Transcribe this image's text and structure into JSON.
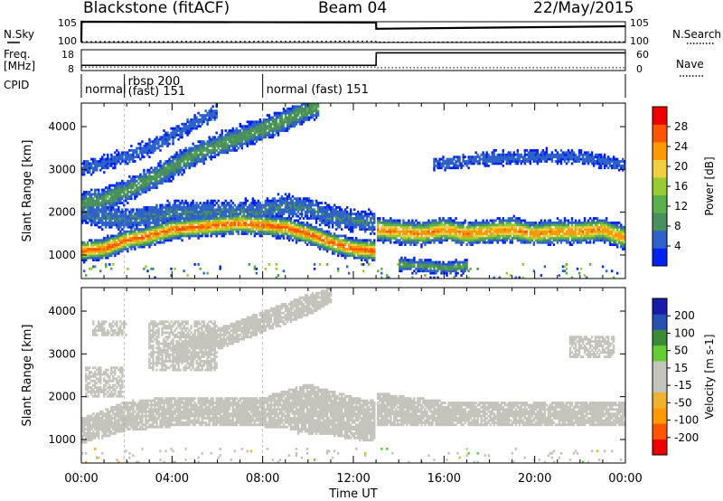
{
  "header": {
    "station": "Blackstone (fitACF)",
    "beam": "Beam 04",
    "date": "22/May/2015"
  },
  "colors": {
    "power_scale": [
      "#0022ee",
      "#2f62c8",
      "#4a8f5e",
      "#5ab04a",
      "#99cc33",
      "#f0d040",
      "#ff9900",
      "#ff5500",
      "#ee0000"
    ],
    "velocity_scale": [
      "#ee0000",
      "#ff5500",
      "#ff9900",
      "#f0b030",
      "#c4c4bc",
      "#c4c4bc",
      "#66cc33",
      "#3a8a3a",
      "#2850b0",
      "#1a1aaa"
    ],
    "ground_scatter": "#c4c4bc"
  },
  "chart_data": [
    {
      "type": "line",
      "panel": "noise",
      "left_label": "N.Sky",
      "right_label": "N.Search",
      "left_ticks": [
        "10^5",
        "10^0"
      ],
      "right_ticks": [
        "10^5",
        "10^0"
      ],
      "series": [
        {
          "name": "N.Sky",
          "x": [
            0,
            0.01,
            13,
            13.01,
            24
          ],
          "y": [
            0.2,
            5.0,
            4.8,
            3.3,
            3.9
          ]
        },
        {
          "name": "N.Search",
          "x": [
            0,
            13,
            13.01,
            24
          ],
          "y": [
            0.2,
            0.3,
            0.1,
            0.2
          ]
        }
      ]
    },
    {
      "type": "line",
      "panel": "frequency",
      "left_label": "Freq. [MHz]",
      "right_label": "Nave",
      "left_ticks": [
        18,
        8
      ],
      "right_ticks": [
        60,
        0
      ],
      "series": [
        {
          "name": "Freq. [MHz]",
          "x": [
            0,
            13,
            13.01,
            24
          ],
          "y": [
            10.5,
            10.5,
            16.5,
            16.5
          ]
        },
        {
          "name": "Nave",
          "x": [
            0,
            13,
            13.01,
            24
          ],
          "y": [
            10,
            10,
            8,
            8
          ]
        }
      ]
    },
    {
      "type": "table",
      "panel": "cpid",
      "label": "CPID",
      "segments": [
        {
          "start": 0,
          "end": 1.9,
          "text": "normal",
          "text2": ""
        },
        {
          "start": 1.9,
          "end": 8.0,
          "text": "rbsp 200",
          "text2": "(fast) 151"
        },
        {
          "start": 8.0,
          "end": 24,
          "text": "normal (fast) 151",
          "text2": ""
        }
      ]
    },
    {
      "type": "heatmap",
      "panel": "power",
      "xlabel": "",
      "ylabel": "Slant Range [km]",
      "xlim": [
        0,
        24
      ],
      "ylim": [
        450,
        4550
      ],
      "yticks": [
        1000,
        2000,
        3000,
        4000
      ],
      "colorbar_label": "Power [dB]",
      "colorbar_ticks": [
        28,
        24,
        20,
        16,
        12,
        8,
        4
      ],
      "colorbar_range": [
        0,
        32
      ],
      "bands": [
        {
          "x": [
            0,
            1,
            2,
            3,
            4,
            5,
            6,
            7,
            8,
            9,
            10,
            11,
            12,
            12.95
          ],
          "center": [
            1100,
            1150,
            1350,
            1450,
            1600,
            1650,
            1700,
            1750,
            1700,
            1650,
            1500,
            1300,
            1150,
            1100
          ],
          "width": 160,
          "peak": 26
        },
        {
          "x": [
            13.05,
            14,
            15,
            16,
            17,
            18,
            19,
            20,
            21,
            22,
            23,
            24
          ],
          "center": [
            1600,
            1550,
            1500,
            1600,
            1500,
            1550,
            1600,
            1500,
            1550,
            1550,
            1600,
            1400
          ],
          "width": 180,
          "peak": 24
        },
        {
          "x": [
            0,
            1,
            2,
            3,
            4,
            5,
            6,
            7,
            8,
            9,
            10,
            11,
            12,
            12.95
          ],
          "center": [
            2000,
            1900,
            1850,
            1900,
            2000,
            2000,
            2000,
            2000,
            2050,
            2150,
            2100,
            1900,
            1800,
            1750
          ],
          "width": 230,
          "peak": 7
        },
        {
          "x": [
            0,
            1,
            2,
            3,
            4,
            5,
            6,
            7,
            8,
            9,
            10,
            10.5
          ],
          "center": [
            2200,
            2300,
            2500,
            2750,
            3050,
            3350,
            3550,
            3750,
            3950,
            4150,
            4400,
            4500
          ],
          "width": 220,
          "peak": 10
        },
        {
          "x": [
            0,
            1,
            2,
            3,
            4,
            5,
            6
          ],
          "center": [
            3000,
            3150,
            3300,
            3500,
            3800,
            4100,
            4350
          ],
          "width": 180,
          "peak": 5
        },
        {
          "x": [
            15.5,
            18,
            20,
            22,
            24
          ],
          "center": [
            3150,
            3250,
            3300,
            3300,
            3100
          ],
          "width": 160,
          "peak": 5
        },
        {
          "x": [
            14,
            16,
            17
          ],
          "center": [
            800,
            700,
            750
          ],
          "width": 120,
          "peak": 10
        }
      ]
    },
    {
      "type": "heatmap",
      "panel": "velocity",
      "xlabel": "Time UT",
      "ylabel": "Slant Range [km]",
      "xlim": [
        0,
        24
      ],
      "ylim": [
        450,
        4550
      ],
      "yticks": [
        1000,
        2000,
        3000,
        4000
      ],
      "xticks": [
        "00:00",
        "04:00",
        "08:00",
        "12:00",
        "16:00",
        "20:00",
        "00:00"
      ],
      "colorbar_label": "Velocity [m s^-1]",
      "colorbar_ticks": [
        200,
        100,
        50,
        15,
        -15,
        -50,
        -100,
        -200
      ],
      "colorbar_range": [
        -250,
        250
      ],
      "ground_scatter_regions": [
        {
          "x": [
            0,
            2,
            4,
            6,
            8,
            10,
            12,
            12.95
          ],
          "low": [
            900,
            1200,
            1300,
            1300,
            1300,
            1200,
            1000,
            950
          ],
          "high": [
            1500,
            1900,
            2000,
            2000,
            2000,
            2300,
            2000,
            1900
          ]
        },
        {
          "x": [
            13.05,
            16,
            20,
            24
          ],
          "low": [
            1300,
            1300,
            1300,
            1300
          ],
          "high": [
            2100,
            1900,
            1900,
            1900
          ]
        },
        {
          "x": [
            4,
            6,
            8,
            10,
            11
          ],
          "low": [
            2700,
            3100,
            3500,
            3900,
            4200
          ],
          "high": [
            3200,
            3600,
            4000,
            4400,
            4550
          ]
        }
      ],
      "ionospheric_patches": [
        {
          "x_start": 0.2,
          "x_end": 1.8,
          "y_low": 2000,
          "y_high": 2700,
          "velocity": -40
        },
        {
          "x_start": 3.0,
          "x_end": 6.0,
          "y_low": 2600,
          "y_high": 3800,
          "velocity": -30
        },
        {
          "x_start": 0.5,
          "x_end": 2.0,
          "y_low": 3400,
          "y_high": 3800,
          "velocity": -40
        },
        {
          "x_start": 9.5,
          "x_end": 11.5,
          "y_low": 1100,
          "y_high": 2000,
          "velocity": 40
        },
        {
          "x_start": 21.5,
          "x_end": 23.5,
          "y_low": 2900,
          "y_high": 3400,
          "velocity": -25
        }
      ]
    }
  ]
}
